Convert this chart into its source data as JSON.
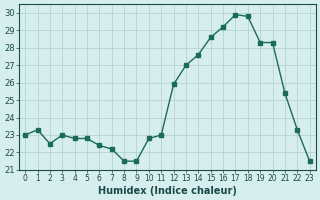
{
  "x": [
    0,
    1,
    2,
    3,
    4,
    5,
    6,
    7,
    8,
    9,
    10,
    11,
    12,
    13,
    14,
    15,
    16,
    17,
    18,
    19,
    20,
    21,
    22,
    23
  ],
  "y": [
    23.0,
    23.3,
    22.5,
    23.0,
    22.8,
    22.8,
    22.4,
    22.2,
    21.5,
    21.5,
    22.8,
    23.0,
    25.9,
    27.0,
    27.6,
    28.6,
    29.2,
    29.9,
    29.8,
    28.3,
    28.3,
    25.4,
    23.3,
    21.5
  ],
  "xlim": [
    -0.5,
    23.5
  ],
  "ylim": [
    21,
    30.5
  ],
  "yticks": [
    21,
    22,
    23,
    24,
    25,
    26,
    27,
    28,
    29,
    30
  ],
  "xticks": [
    0,
    1,
    2,
    3,
    4,
    5,
    6,
    7,
    8,
    9,
    10,
    11,
    12,
    13,
    14,
    15,
    16,
    17,
    18,
    19,
    20,
    21,
    22,
    23
  ],
  "xlabel": "Humidex (Indice chaleur)",
  "line_color": "#1a6b5a",
  "marker_color": "#1a6b5a",
  "bg_color": "#d6eeee",
  "grid_color": "#b0cccc",
  "fig_bg": "#d6eeee"
}
